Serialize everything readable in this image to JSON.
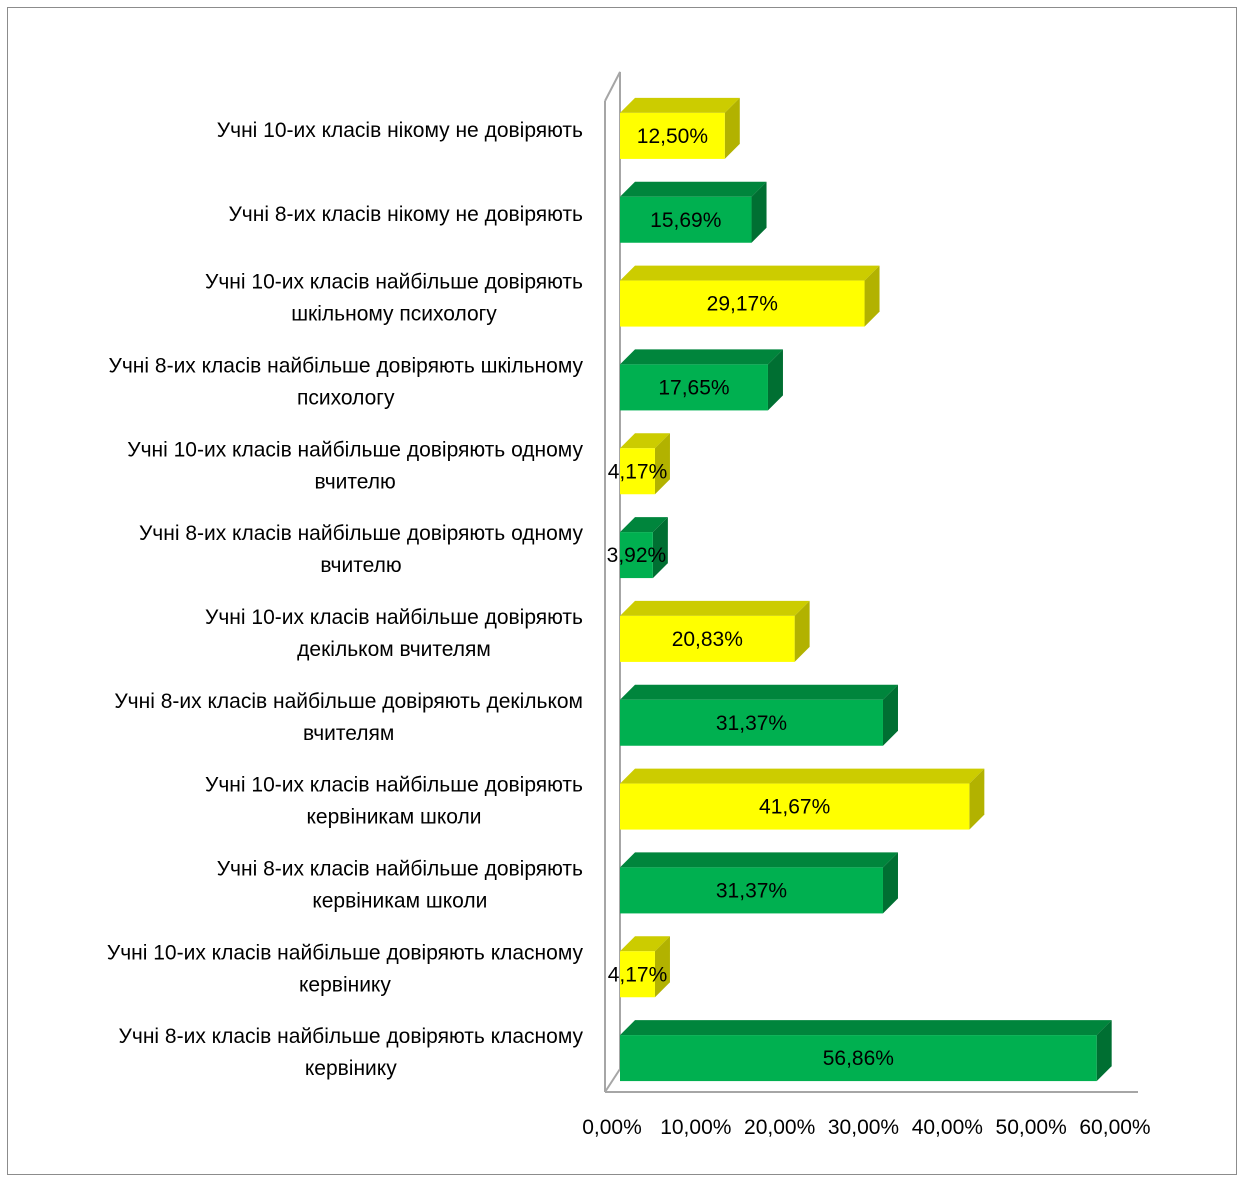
{
  "chart_data": {
    "type": "bar",
    "orientation": "horizontal",
    "three_d": true,
    "categories": [
      [
        "Учні 10-их класів нікому не довіряють"
      ],
      [
        "Учні 8-их класів нікому не довіряють"
      ],
      [
        "Учні 10-их класів найбільше довіряють",
        "шкільному психологу"
      ],
      [
        "Учні 8-их класів найбільше довіряють шкільному",
        "психологу"
      ],
      [
        "Учні 10-их класів найбільше довіряють одному",
        "вчителю"
      ],
      [
        "Учні 8-их класів найбільше довіряють одному",
        "вчителю"
      ],
      [
        "Учні 10-их класів найбільше довіряють",
        "декільком вчителям"
      ],
      [
        "Учні 8-их класів найбільше довіряють декільком",
        "вчителям"
      ],
      [
        "Учні 10-их класів найбільше довіряють",
        "кервіникам школи"
      ],
      [
        "Учні 8-их класів найбільше довіряють",
        "кервіникам школи"
      ],
      [
        "Учні 10-их класів найбільше довіряють класному",
        "кервінику"
      ],
      [
        "Учні 8-их класів найбільше довіряють класному",
        "кервінику"
      ]
    ],
    "values": [
      12.5,
      15.69,
      29.17,
      17.65,
      4.17,
      3.92,
      20.83,
      31.37,
      41.67,
      31.37,
      4.17,
      56.86
    ],
    "data_labels": [
      "12,50%",
      "15,69%",
      "29,17%",
      "17,65%",
      "4,17%",
      "3,92%",
      "20,83%",
      "31,37%",
      "41,67%",
      "31,37%",
      "4,17%",
      "56,86%"
    ],
    "bar_colors": [
      "yellow",
      "green",
      "yellow",
      "green",
      "yellow",
      "green",
      "yellow",
      "green",
      "yellow",
      "green",
      "yellow",
      "green"
    ],
    "palette": {
      "yellow": {
        "front": "#ffff00",
        "top": "#cccc00",
        "side": "#b2b200"
      },
      "green": {
        "front": "#00b050",
        "top": "#00853c",
        "side": "#006f32"
      },
      "axis": "#a6a6a6"
    },
    "x_ticks": [
      "0,00%",
      "10,00%",
      "20,00%",
      "30,00%",
      "40,00%",
      "50,00%",
      "60,00%"
    ],
    "xlim": [
      0,
      60
    ],
    "grid": false,
    "legend": "none"
  }
}
